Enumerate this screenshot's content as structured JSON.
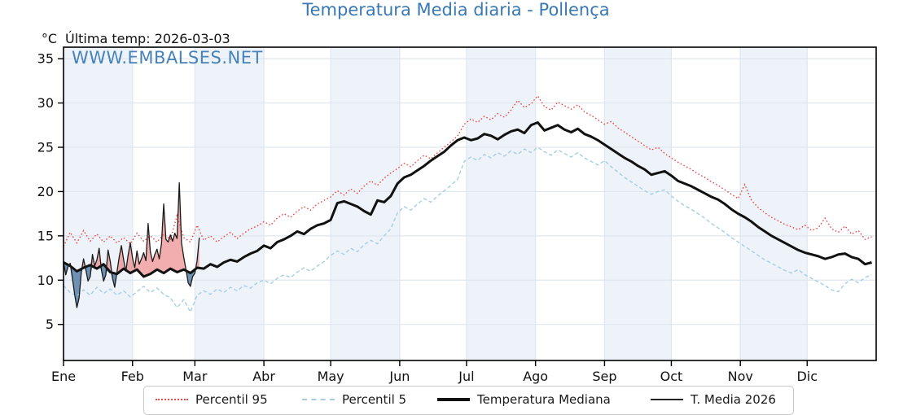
{
  "header": {
    "title": "Temperatura Media diaria - Pollença",
    "unit_label": "°C",
    "last_temp_label": "Última temp: 2026-03-03",
    "watermark": "WWW.EMBALSES.NET"
  },
  "colors": {
    "title_blue": "#3878b5",
    "watermark_blue": "#3476b3",
    "band_blue": "#eef3f9",
    "grid": "#dfe6ee",
    "axis": "#000000",
    "p95_red": "#e84b4b",
    "p5_blue": "#a6cee3",
    "median_black": "#111111",
    "t2026_black": "#1a1a1a",
    "fill_above": "rgba(229,93,93,0.5)",
    "fill_below": "rgba(72,116,160,0.78)"
  },
  "chart_data": {
    "type": "line",
    "title": "Temperatura Media diaria - Pollença",
    "ylabel": "°C",
    "ylim": [
      0.9,
      36.3
    ],
    "yticks": [
      5,
      10,
      15,
      20,
      25,
      30,
      35
    ],
    "grid": true,
    "legend_position": "bottom",
    "x_axis_unit": "day_of_year",
    "month_labels": [
      "Ene",
      "Feb",
      "Mar",
      "Abr",
      "May",
      "Jun",
      "Jul",
      "Ago",
      "Sep",
      "Oct",
      "Nov",
      "Dic"
    ],
    "month_start_days": [
      0,
      31,
      59,
      90,
      120,
      151,
      181,
      212,
      243,
      273,
      304,
      334
    ],
    "series": [
      {
        "name": "Percentil 95",
        "style": "dotted",
        "color": "#e84b4b",
        "day_start": 0,
        "day_step": 3,
        "values": [
          13.8,
          15.4,
          14.2,
          15.6,
          14.4,
          15.2,
          14.3,
          15.0,
          14.2,
          14.8,
          14.1,
          15.3,
          14.4,
          15.0,
          14.3,
          15.2,
          14.6,
          17.3,
          14.8,
          14.3,
          16.2,
          14.5,
          15.0,
          14.3,
          14.9,
          15.4,
          14.7,
          15.3,
          15.8,
          16.1,
          16.6,
          16.2,
          17.0,
          17.5,
          17.1,
          17.8,
          18.3,
          17.9,
          18.6,
          19.0,
          19.4,
          20.1,
          19.6,
          20.3,
          19.8,
          20.6,
          21.2,
          20.7,
          21.5,
          22.1,
          22.6,
          23.2,
          22.8,
          23.5,
          24.1,
          23.7,
          24.4,
          25.0,
          25.6,
          26.3,
          27.6,
          28.2,
          27.8,
          28.5,
          28.1,
          28.8,
          28.4,
          29.2,
          30.3,
          29.5,
          29.9,
          30.8,
          29.6,
          29.2,
          30.1,
          29.7,
          29.3,
          29.8,
          29.0,
          28.6,
          28.1,
          27.6,
          27.9,
          27.2,
          26.7,
          26.2,
          25.7,
          25.2,
          24.7,
          25.0,
          24.3,
          23.8,
          23.3,
          22.9,
          22.5,
          22.0,
          21.6,
          21.1,
          20.7,
          20.2,
          19.7,
          19.2,
          20.8,
          19.0,
          18.2,
          17.6,
          17.1,
          16.7,
          16.3,
          16.0,
          15.7,
          16.2,
          15.6,
          15.9,
          17.0,
          15.8,
          15.4,
          16.1,
          15.2,
          15.6,
          14.6,
          14.9
        ]
      },
      {
        "name": "Percentil 5",
        "style": "dashed",
        "color": "#a6cee3",
        "day_start": 0,
        "day_step": 3,
        "values": [
          9.4,
          8.6,
          8.2,
          8.9,
          8.3,
          9.2,
          8.5,
          9.0,
          8.3,
          8.8,
          8.1,
          8.7,
          9.3,
          8.6,
          9.1,
          8.4,
          8.0,
          6.9,
          7.8,
          6.4,
          8.3,
          8.8,
          8.4,
          9.0,
          8.6,
          9.2,
          8.8,
          9.4,
          9.1,
          9.7,
          10.0,
          9.6,
          10.2,
          10.6,
          10.3,
          10.9,
          11.4,
          11.0,
          11.6,
          12.1,
          12.8,
          13.3,
          12.9,
          13.6,
          13.2,
          14.0,
          14.5,
          14.1,
          15.0,
          15.8,
          17.6,
          18.3,
          17.9,
          18.6,
          19.2,
          18.8,
          19.5,
          20.1,
          20.7,
          21.4,
          23.4,
          23.9,
          23.5,
          24.2,
          23.8,
          24.4,
          24.0,
          24.6,
          24.2,
          24.8,
          24.4,
          25.0,
          24.5,
          24.1,
          24.7,
          24.3,
          23.9,
          24.4,
          23.8,
          23.4,
          23.0,
          23.5,
          22.8,
          22.2,
          21.6,
          21.1,
          20.6,
          20.1,
          19.7,
          20.0,
          20.2,
          19.5,
          18.9,
          18.4,
          18.0,
          17.5,
          17.0,
          16.4,
          15.9,
          15.4,
          14.8,
          14.3,
          13.8,
          13.3,
          12.8,
          12.3,
          11.9,
          11.5,
          11.1,
          10.8,
          11.2,
          10.6,
          10.2,
          9.8,
          9.4,
          8.9,
          8.7,
          9.6,
          10.1,
          9.7,
          10.3,
          10.6
        ]
      },
      {
        "name": "Temperatura Mediana",
        "style": "solid-thick",
        "color": "#111111",
        "day_start": 0,
        "day_step": 3,
        "values": [
          12.0,
          11.6,
          11.0,
          11.4,
          11.7,
          11.3,
          11.8,
          10.9,
          10.7,
          11.3,
          10.8,
          11.2,
          10.4,
          10.7,
          11.2,
          10.8,
          11.3,
          10.9,
          11.2,
          10.8,
          11.4,
          11.3,
          11.8,
          11.5,
          12.0,
          12.3,
          12.1,
          12.6,
          13.0,
          13.3,
          13.9,
          13.6,
          14.3,
          14.6,
          15.0,
          15.5,
          15.2,
          15.8,
          16.2,
          16.4,
          16.8,
          18.7,
          18.9,
          18.6,
          18.3,
          17.8,
          17.4,
          19.0,
          18.8,
          19.5,
          20.9,
          21.6,
          21.9,
          22.4,
          22.9,
          23.5,
          24.0,
          24.5,
          25.2,
          25.8,
          26.1,
          25.8,
          26.0,
          26.5,
          26.3,
          25.9,
          26.4,
          26.8,
          27.0,
          26.6,
          27.5,
          27.8,
          26.9,
          27.2,
          27.5,
          27.0,
          26.7,
          27.1,
          26.5,
          26.2,
          25.8,
          25.3,
          24.8,
          24.3,
          23.8,
          23.4,
          22.9,
          22.5,
          21.9,
          22.1,
          22.3,
          21.8,
          21.2,
          20.9,
          20.6,
          20.2,
          19.8,
          19.4,
          19.1,
          18.6,
          18.0,
          17.5,
          17.1,
          16.6,
          16.0,
          15.5,
          15.0,
          14.6,
          14.2,
          13.8,
          13.4,
          13.1,
          12.9,
          12.7,
          12.4,
          12.6,
          12.9,
          13.0,
          12.6,
          12.4,
          11.8,
          12.0
        ]
      },
      {
        "name": "T. Media 2026",
        "style": "solid-thin",
        "color": "#1a1a1a",
        "day_start": 0,
        "day_step": 1,
        "fill_vs": "Temperatura Mediana",
        "fill_above_color": "rgba(229,93,93,0.5)",
        "fill_below_color": "rgba(72,116,160,0.78)",
        "values": [
          12.0,
          10.6,
          11.5,
          11.9,
          10.2,
          8.4,
          6.9,
          8.0,
          10.9,
          12.4,
          11.2,
          9.9,
          10.4,
          12.9,
          11.6,
          12.3,
          13.6,
          11.2,
          9.9,
          10.6,
          13.4,
          12.1,
          10.2,
          9.2,
          10.9,
          12.6,
          13.9,
          12.3,
          11.0,
          12.8,
          14.2,
          12.5,
          11.4,
          13.3,
          11.8,
          12.4,
          13.1,
          12.2,
          16.4,
          13.2,
          12.1,
          12.9,
          13.5,
          12.4,
          14.1,
          18.6,
          14.6,
          14.3,
          15.1,
          14.4,
          15.3,
          14.7,
          21.0,
          14.2,
          12.6,
          11.2,
          9.7,
          9.3,
          10.4,
          10.8,
          12.2,
          14.8
        ]
      }
    ]
  },
  "legend": {
    "items_note": "labels bound from chart_data.series names"
  }
}
